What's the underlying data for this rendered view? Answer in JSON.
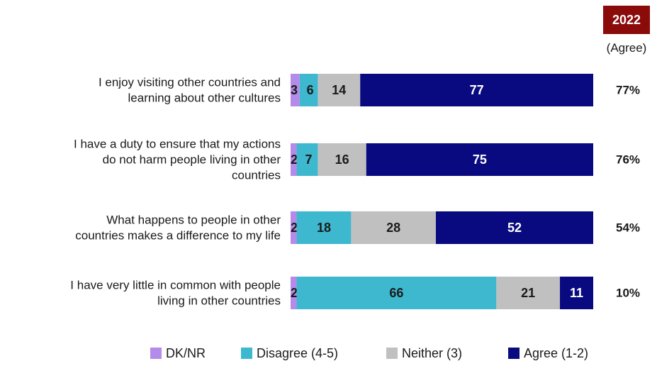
{
  "header": {
    "year_badge": "2022",
    "year_subtitle": "(Agree)"
  },
  "colors": {
    "badge": "#8b0a0a",
    "dk": "#b48be8",
    "disagree": "#3db8cf",
    "neither": "#c0c0c0",
    "agree": "#0a0a80"
  },
  "chart_data": {
    "type": "bar",
    "orientation": "horizontal",
    "stacked": true,
    "categories": [
      [
        "I enjoy visiting other countries and",
        "learning about other cultures"
      ],
      [
        "I have a duty to ensure that my actions",
        "do not harm people living in other",
        "countries"
      ],
      [
        "What happens to people in other",
        "countries makes a difference to my life"
      ],
      [
        "I have very little in common with people",
        "living in other countries"
      ]
    ],
    "series": [
      {
        "name": "DK/NR",
        "values": [
          3,
          2,
          2,
          2
        ]
      },
      {
        "name": "Disagree (4-5)",
        "values": [
          6,
          7,
          18,
          66
        ]
      },
      {
        "name": "Neither (3)",
        "values": [
          14,
          16,
          28,
          21
        ]
      },
      {
        "name": "Agree (1-2)",
        "values": [
          77,
          75,
          52,
          11
        ]
      }
    ],
    "totals_2022_agree": [
      "77%",
      "76%",
      "54%",
      "10%"
    ],
    "xlim": [
      0,
      100
    ],
    "legend_position": "bottom",
    "grid": false
  }
}
